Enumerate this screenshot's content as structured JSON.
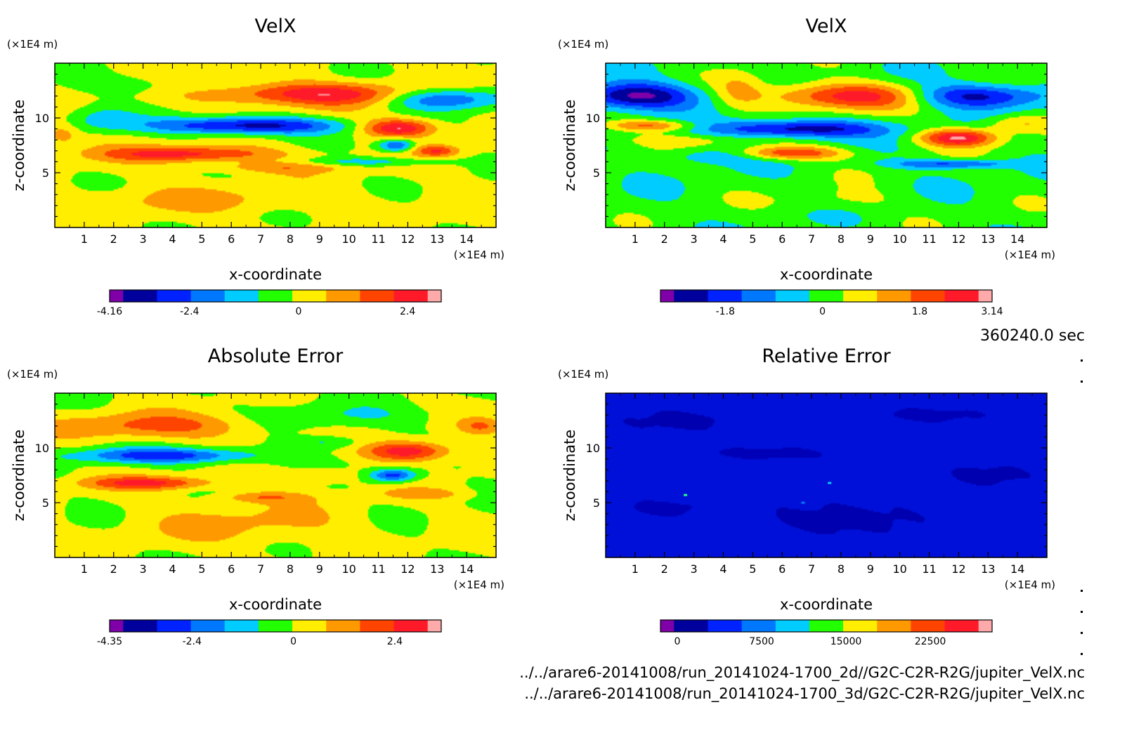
{
  "time_label": "360240.0 sec",
  "file_paths": [
    "../../arare6-20141008/run_20141024-1700_2d//G2C-C2R-R2G/jupiter_VelX.nc",
    "../../arare6-20141008/run_20141024-1700_3d/G2C-C2R-R2G/jupiter_VelX.nc"
  ],
  "chart_data": [
    {
      "type": "heatmap",
      "title": "VelX",
      "xlabel": "x-coordinate",
      "ylabel": "z-coordinate",
      "x_unit": "(×1E4 m)",
      "y_unit": "(×1E4 m)",
      "xlim": [
        0,
        15
      ],
      "ylim": [
        0,
        15
      ],
      "x_ticks": [
        1,
        2,
        3,
        4,
        5,
        6,
        7,
        8,
        9,
        10,
        11,
        12,
        13,
        14
      ],
      "y_ticks": [
        5,
        10
      ],
      "colorbar": {
        "min": -4.16,
        "max": 3.14,
        "tick_values": [
          -4.16,
          -2.4,
          0,
          2.4
        ],
        "tick_labels": [
          "-4.16",
          "-2.4",
          "0",
          "2.4"
        ],
        "colors": [
          "#7f00a8",
          "#00009c",
          "#0022ff",
          "#0077ff",
          "#00ccff",
          "#22ff00",
          "#ffee00",
          "#ff9900",
          "#ff4400",
          "#ff1a2a",
          "#ffaaaa"
        ]
      },
      "features": [
        {
          "x": 9.0,
          "z": 12.2,
          "sx": 3.8,
          "sz": 1.0,
          "v": 2.3
        },
        {
          "x": 6.5,
          "z": 9.3,
          "sx": 3.2,
          "sz": 0.8,
          "v": -3.3
        },
        {
          "x": 4.5,
          "z": 6.7,
          "sx": 2.8,
          "sz": 0.7,
          "v": 2.2
        },
        {
          "x": 11.7,
          "z": 9.1,
          "sx": 1.2,
          "sz": 0.8,
          "v": 2.8
        },
        {
          "x": 13.2,
          "z": 11.8,
          "sx": 2.0,
          "sz": 1.0,
          "v": -2.6
        },
        {
          "x": 11.6,
          "z": 7.5,
          "sx": 0.6,
          "sz": 0.6,
          "v": -2.4
        },
        {
          "x": 10.8,
          "z": 6.0,
          "sx": 2.5,
          "sz": 0.4,
          "v": -1.2
        },
        {
          "x": 1.5,
          "z": 10.0,
          "sx": 1.2,
          "sz": 1.2,
          "v": -1.0
        },
        {
          "x": 7.5,
          "z": 5.5,
          "sx": 2.5,
          "sz": 0.5,
          "v": 0.9
        },
        {
          "x": 5.0,
          "z": 2.5,
          "sx": 5.0,
          "sz": 1.2,
          "v": 0.6
        },
        {
          "x": 13.0,
          "z": 7.0,
          "sx": 0.7,
          "sz": 0.5,
          "v": 1.7
        },
        {
          "x": 3.0,
          "z": 13.0,
          "sx": 2.5,
          "sz": 1.0,
          "v": -0.7
        },
        {
          "x": 0.2,
          "z": 8.5,
          "sx": 0.6,
          "sz": 1.0,
          "v": 1.0
        }
      ]
    },
    {
      "type": "heatmap",
      "title": "VelX",
      "xlabel": "x-coordinate",
      "ylabel": "z-coordinate",
      "x_unit": "(×1E4 m)",
      "y_unit": "(×1E4 m)",
      "xlim": [
        0,
        15
      ],
      "ylim": [
        0,
        15
      ],
      "x_ticks": [
        1,
        2,
        3,
        4,
        5,
        6,
        7,
        8,
        9,
        10,
        11,
        12,
        13,
        14
      ],
      "y_ticks": [
        5,
        10
      ],
      "colorbar": {
        "min": -3.0,
        "max": 3.14,
        "tick_values": [
          -1.8,
          0,
          1.8,
          3.14
        ],
        "tick_labels": [
          "-1.8",
          "0",
          "1.8",
          "3.14"
        ],
        "colors": [
          "#7f00a8",
          "#00009c",
          "#0022ff",
          "#0077ff",
          "#00ccff",
          "#22ff00",
          "#ffee00",
          "#ff9900",
          "#ff4400",
          "#ff1a2a",
          "#ffaaaa"
        ]
      },
      "features": [
        {
          "x": 1.0,
          "z": 12.0,
          "sx": 2.0,
          "sz": 1.2,
          "v": -2.7
        },
        {
          "x": 8.3,
          "z": 12.0,
          "sx": 2.8,
          "sz": 1.2,
          "v": 2.4
        },
        {
          "x": 6.5,
          "z": 9.0,
          "sx": 2.8,
          "sz": 0.8,
          "v": -2.4
        },
        {
          "x": 12.0,
          "z": 8.2,
          "sx": 1.3,
          "sz": 0.8,
          "v": 2.6
        },
        {
          "x": 12.5,
          "z": 12.0,
          "sx": 2.3,
          "sz": 1.1,
          "v": -2.3
        },
        {
          "x": 6.3,
          "z": 6.8,
          "sx": 1.8,
          "sz": 0.6,
          "v": 2.0
        },
        {
          "x": 1.5,
          "z": 9.3,
          "sx": 1.5,
          "sz": 0.5,
          "v": 1.6
        },
        {
          "x": 11.8,
          "z": 5.8,
          "sx": 2.0,
          "sz": 0.4,
          "v": -1.6
        },
        {
          "x": 4.5,
          "z": 12.5,
          "sx": 0.8,
          "sz": 1.8,
          "v": 0.7
        },
        {
          "x": 3.5,
          "z": 6.5,
          "sx": 1.5,
          "sz": 0.7,
          "v": -0.8
        },
        {
          "x": 8.0,
          "z": 2.5,
          "sx": 2.0,
          "sz": 1.0,
          "v": 0.5
        },
        {
          "x": 14.0,
          "z": 9.5,
          "sx": 1.2,
          "sz": 0.8,
          "v": 1.0
        },
        {
          "x": 3.0,
          "z": 8.0,
          "sx": 3.0,
          "sz": 0.6,
          "v": 0.5
        }
      ]
    },
    {
      "type": "heatmap",
      "title": "Absolute Error",
      "xlabel": "x-coordinate",
      "ylabel": "z-coordinate",
      "x_unit": "(×1E4 m)",
      "y_unit": "(×1E4 m)",
      "xlim": [
        0,
        15
      ],
      "ylim": [
        0,
        15
      ],
      "x_ticks": [
        1,
        2,
        3,
        4,
        5,
        6,
        7,
        8,
        9,
        10,
        11,
        12,
        13,
        14
      ],
      "y_ticks": [
        5,
        10
      ],
      "colorbar": {
        "min": -4.35,
        "max": 3.5,
        "tick_values": [
          -4.35,
          -2.4,
          0,
          2.4
        ],
        "tick_labels": [
          "-4.35",
          "-2.4",
          "0",
          "2.4"
        ],
        "colors": [
          "#7f00a8",
          "#00009c",
          "#0022ff",
          "#0077ff",
          "#00ccff",
          "#22ff00",
          "#ffee00",
          "#ff9900",
          "#ff4400",
          "#ff1a2a",
          "#ffaaaa"
        ]
      },
      "features": [
        {
          "x": 3.5,
          "z": 12.0,
          "sx": 3.5,
          "sz": 1.2,
          "v": 1.6
        },
        {
          "x": 3.8,
          "z": 9.3,
          "sx": 3.2,
          "sz": 0.7,
          "v": -2.6
        },
        {
          "x": 3.2,
          "z": 6.8,
          "sx": 2.2,
          "sz": 0.6,
          "v": 2.2
        },
        {
          "x": 12.0,
          "z": 9.7,
          "sx": 1.4,
          "sz": 0.9,
          "v": 2.8
        },
        {
          "x": 11.5,
          "z": 7.5,
          "sx": 0.8,
          "sz": 0.6,
          "v": -2.8
        },
        {
          "x": 9.3,
          "z": 10.5,
          "sx": 1.2,
          "sz": 0.6,
          "v": -1.1
        },
        {
          "x": 11.0,
          "z": 13.0,
          "sx": 2.5,
          "sz": 1.0,
          "v": -0.6
        },
        {
          "x": 7.0,
          "z": 5.5,
          "sx": 1.5,
          "sz": 0.5,
          "v": 1.2
        },
        {
          "x": 14.5,
          "z": 12.0,
          "sx": 0.8,
          "sz": 0.8,
          "v": 1.4
        },
        {
          "x": 6.5,
          "z": 3.0,
          "sx": 4.0,
          "sz": 2.0,
          "v": 0.8
        },
        {
          "x": 12.5,
          "z": 5.8,
          "sx": 1.5,
          "sz": 0.5,
          "v": 1.0
        },
        {
          "x": 8.5,
          "z": 12.5,
          "sx": 1.8,
          "sz": 1.2,
          "v": -0.5
        },
        {
          "x": 9.0,
          "z": 7.5,
          "sx": 1.5,
          "sz": 0.7,
          "v": 0.8
        }
      ]
    },
    {
      "type": "heatmap",
      "title": "Relative Error",
      "xlabel": "x-coordinate",
      "ylabel": "z-coordinate",
      "x_unit": "(×1E4 m)",
      "y_unit": "(×1E4 m)",
      "xlim": [
        0,
        15
      ],
      "ylim": [
        0,
        15
      ],
      "x_ticks": [
        1,
        2,
        3,
        4,
        5,
        6,
        7,
        8,
        9,
        10,
        11,
        12,
        13,
        14
      ],
      "y_ticks": [
        5,
        10
      ],
      "colorbar": {
        "min": -1500,
        "max": 28000,
        "tick_values": [
          0,
          7500,
          15000,
          22500
        ],
        "tick_labels": [
          "0",
          "7500",
          "15000",
          "22500"
        ],
        "colors": [
          "#7f00a8",
          "#00009c",
          "#0022ff",
          "#0077ff",
          "#00ccff",
          "#22ff00",
          "#ffee00",
          "#ff9900",
          "#ff4400",
          "#ff1a2a",
          "#ffaaaa"
        ]
      },
      "background": "#0010d8",
      "patches": [
        {
          "x": 2.5,
          "z": 12.5,
          "sx": 2.0,
          "sz": 1.0,
          "color": "#0000b0"
        },
        {
          "x": 8.0,
          "z": 3.5,
          "sx": 3.0,
          "sz": 1.5,
          "color": "#0000b0"
        },
        {
          "x": 13.0,
          "z": 7.5,
          "sx": 1.5,
          "sz": 1.0,
          "color": "#0000b0"
        },
        {
          "x": 5.5,
          "z": 9.5,
          "sx": 2.5,
          "sz": 0.6,
          "color": "#0000b8"
        },
        {
          "x": 11.0,
          "z": 13.0,
          "sx": 2.0,
          "sz": 0.7,
          "color": "#0000b8"
        },
        {
          "x": 2.0,
          "z": 4.5,
          "sx": 1.5,
          "sz": 0.8,
          "color": "#0000b8"
        }
      ],
      "specks": [
        {
          "x": 2.7,
          "z": 5.7,
          "color": "#22ff88"
        },
        {
          "x": 7.6,
          "z": 6.8,
          "color": "#00ccff"
        },
        {
          "x": 6.7,
          "z": 5.0,
          "color": "#0077ff"
        }
      ]
    }
  ]
}
